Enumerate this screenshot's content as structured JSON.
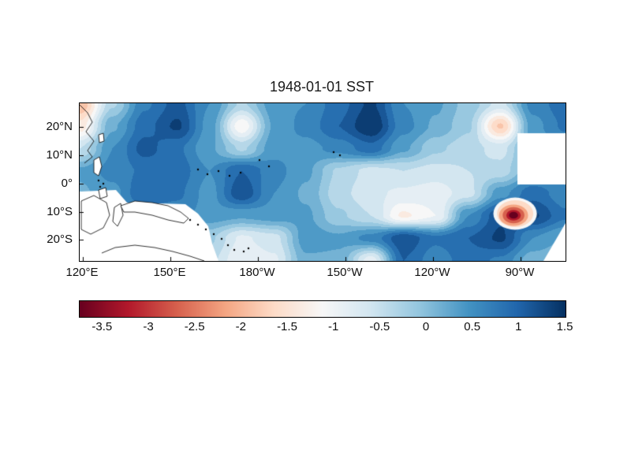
{
  "figure": {
    "title": "1948-01-01 SST"
  },
  "chart_data": {
    "type": "heatmap",
    "subtype": "filled-contour-map",
    "title": "1948-01-01 SST",
    "x_axis": {
      "tick_labels": [
        "120°E",
        "150°E",
        "180°W",
        "150°W",
        "120°W",
        "90°W"
      ]
    },
    "y_axis": {
      "tick_labels": [
        "20°N",
        "10°N",
        "0°",
        "10°S",
        "20°S"
      ]
    },
    "colorbar": {
      "orientation": "horizontal",
      "ticks": [
        -3.5,
        -3,
        -2.5,
        -2,
        -1.5,
        -1,
        -0.5,
        0,
        0.5,
        1,
        1.5
      ],
      "tick_labels": [
        "-3.5",
        "-3",
        "-2.5",
        "-2",
        "-1.5",
        "-1",
        "-0.5",
        "0",
        "0.5",
        "1",
        "1.5"
      ],
      "range": [
        -3.75,
        1.5
      ],
      "colormap": "RdBu",
      "stops": [
        "#67001f",
        "#b2182b",
        "#d6604d",
        "#f4a582",
        "#fddbc7",
        "#f7f7f7",
        "#d1e5f0",
        "#92c5de",
        "#4393c3",
        "#2166ac",
        "#053061"
      ]
    },
    "contour_interval": 0.25,
    "grid": {
      "description": "approx anomaly values read from shading; rows north to south (~28N..28S), cols west to east (~120E..75W)",
      "values": [
        [
          -2.0,
          -0.3,
          0.7,
          1.1,
          0.5,
          -0.3,
          0.4,
          0.5,
          0.9,
          1.3,
          0.5,
          0.3,
          -0.1,
          -0.6,
          0.6,
          0.9
        ],
        [
          -1.4,
          0.2,
          0.9,
          1.3,
          0.4,
          -1.2,
          0.3,
          0.6,
          1.0,
          1.5,
          0.6,
          0.2,
          -0.2,
          -1.8,
          0.4,
          0.8
        ],
        [
          -0.5,
          0.5,
          1.1,
          0.8,
          0.3,
          -0.3,
          0.4,
          0.4,
          0.6,
          0.9,
          0.3,
          -0.2,
          -0.4,
          -0.6,
          0.3,
          0.5
        ],
        [
          0.3,
          0.6,
          0.8,
          0.9,
          0.5,
          1.0,
          0.6,
          0.3,
          -0.3,
          -0.6,
          -0.5,
          -0.6,
          -0.5,
          -0.4,
          0.3,
          0.4
        ],
        [
          0.2,
          0.4,
          1.0,
          0.8,
          0.4,
          1.2,
          0.5,
          0.2,
          -0.4,
          -0.7,
          -0.8,
          -0.9,
          -0.6,
          0.4,
          0.9,
          0.6
        ],
        [
          0.1,
          0.3,
          0.5,
          0.6,
          0.4,
          0.3,
          0.4,
          0.3,
          -0.2,
          -0.5,
          -1.3,
          -1.0,
          0.5,
          1.2,
          1.3,
          0.8
        ],
        [
          0.0,
          0.1,
          0.2,
          0.1,
          -0.2,
          -0.8,
          -0.6,
          0.4,
          0.3,
          0.6,
          1.2,
          0.8,
          1.0,
          1.3,
          0.5,
          0.2
        ],
        [
          0.0,
          0.0,
          0.0,
          -0.2,
          -0.4,
          -1.0,
          -0.8,
          0.2,
          0.2,
          -0.9,
          1.0,
          0.6,
          0.9,
          0.7,
          0.1,
          0.0
        ]
      ]
    },
    "hotspot": {
      "x_frac": 0.893,
      "y_frac": 0.71,
      "min_value": -3.5
    },
    "no_data_regions": [
      "maritime continent land (south-west)",
      "east of ~95W north of equator",
      "south-east corner"
    ]
  }
}
